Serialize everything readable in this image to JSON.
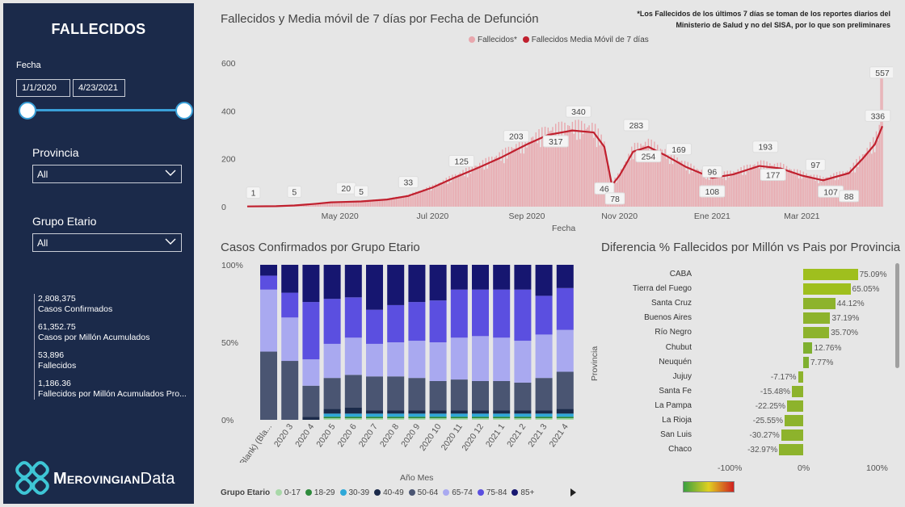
{
  "sidebar": {
    "title": "FALLECIDOS",
    "fecha_label": "Fecha",
    "date_from": "1/1/2020",
    "date_to": "4/23/2021",
    "provincia_label": "Provincia",
    "provincia_value": "All",
    "grupo_label": "Grupo Etario",
    "grupo_value": "All",
    "kpis": [
      {
        "value": "2,808,375",
        "label": "Casos Confirmados"
      },
      {
        "value": "61,352.75",
        "label": "Casos por Millón Acumulados"
      },
      {
        "value": "53,896",
        "label": "Fallecidos"
      },
      {
        "value": "1,186.36",
        "label": "Fallecidos por Millón Acumulados Pro..."
      }
    ],
    "logo_bold": "Merovingian",
    "logo_light": "Data"
  },
  "note": "*Los Fallecidos de los últimos 7 días se toman de los reportes diarios del Ministerio de Salud y no del SISA, por lo que son preliminares",
  "colors": {
    "sidebar": "#1b2a4a",
    "daily_bar": "#e8a7ad",
    "moving_avg": "#c0202e",
    "province_bar": "#8db32c"
  },
  "chart_data": [
    {
      "type": "line",
      "title": "Fallecidos y Media móvil de 7 días por Fecha de Defunción",
      "xlabel": "Fecha",
      "ylim": [
        0,
        600
      ],
      "yticks": [
        "0",
        "200",
        "400",
        "600"
      ],
      "xticks": [
        "May 2020",
        "Jul 2020",
        "Sep 2020",
        "Nov 2020",
        "Ene 2021",
        "Mar 2021"
      ],
      "series": [
        {
          "name": "Fallecidos*",
          "kind": "bar"
        },
        {
          "name": "Fallecidos Media Móvil de 7 días",
          "kind": "line"
        }
      ],
      "moving_avg_points": [
        [
          "2020-03-01",
          1
        ],
        [
          "2020-03-20",
          2
        ],
        [
          "2020-04-01",
          5
        ],
        [
          "2020-04-15",
          12
        ],
        [
          "2020-04-25",
          18
        ],
        [
          "2020-05-05",
          20
        ],
        [
          "2020-05-15",
          22
        ],
        [
          "2020-06-01",
          30
        ],
        [
          "2020-06-15",
          45
        ],
        [
          "2020-07-01",
          80
        ],
        [
          "2020-07-15",
          120
        ],
        [
          "2020-08-01",
          165
        ],
        [
          "2020-08-15",
          205
        ],
        [
          "2020-09-01",
          260
        ],
        [
          "2020-09-15",
          300
        ],
        [
          "2020-10-01",
          318
        ],
        [
          "2020-10-15",
          310
        ],
        [
          "2020-10-22",
          250
        ],
        [
          "2020-10-27",
          90
        ],
        [
          "2020-11-01",
          130
        ],
        [
          "2020-11-10",
          230
        ],
        [
          "2020-11-20",
          250
        ],
        [
          "2020-12-01",
          215
        ],
        [
          "2020-12-15",
          165
        ],
        [
          "2021-01-01",
          120
        ],
        [
          "2021-01-15",
          135
        ],
        [
          "2021-02-01",
          170
        ],
        [
          "2021-02-15",
          160
        ],
        [
          "2021-03-01",
          130
        ],
        [
          "2021-03-15",
          110
        ],
        [
          "2021-04-01",
          140
        ],
        [
          "2021-04-10",
          200
        ],
        [
          "2021-04-18",
          260
        ],
        [
          "2021-04-23",
          336
        ]
      ],
      "data_labels": [
        {
          "date": "2020-03-05",
          "value": "1"
        },
        {
          "date": "2020-04-01",
          "value": "5"
        },
        {
          "date": "2020-05-05",
          "value": "20"
        },
        {
          "date": "2020-05-15",
          "value": "5"
        },
        {
          "date": "2020-06-15",
          "value": "33"
        },
        {
          "date": "2020-07-20",
          "value": "125"
        },
        {
          "date": "2020-08-25",
          "value": "203"
        },
        {
          "date": "2020-09-20",
          "value": "317"
        },
        {
          "date": "2020-10-05",
          "value": "340"
        },
        {
          "date": "2020-10-22",
          "value": "46"
        },
        {
          "date": "2020-10-29",
          "value": "78"
        },
        {
          "date": "2020-11-12",
          "value": "283"
        },
        {
          "date": "2020-11-20",
          "value": "254"
        },
        {
          "date": "2020-12-10",
          "value": "169"
        },
        {
          "date": "2021-01-01",
          "value": "96"
        },
        {
          "date": "2021-01-01",
          "value": "108"
        },
        {
          "date": "2021-02-05",
          "value": "193"
        },
        {
          "date": "2021-02-10",
          "value": "177"
        },
        {
          "date": "2021-03-10",
          "value": "97"
        },
        {
          "date": "2021-03-20",
          "value": "107"
        },
        {
          "date": "2021-04-01",
          "value": "88"
        },
        {
          "date": "2021-04-20",
          "value": "336"
        },
        {
          "date": "2021-04-23",
          "value": "557"
        }
      ]
    },
    {
      "type": "bar",
      "stacked_percent": true,
      "title": "Casos Confirmados por Grupo Etario",
      "xlabel": "Año Mes",
      "legend_title": "Grupo Etario",
      "yticks": [
        "0%",
        "50%",
        "100%"
      ],
      "categories": [
        "(Blank) (Bla...",
        "2020 3",
        "2020 4",
        "2020 5",
        "2020 6",
        "2020 7",
        "2020 8",
        "2020 9",
        "2020 10",
        "2020 11",
        "2020 12",
        "2021 1",
        "2021 2",
        "2021 3",
        "2021 4"
      ],
      "series": [
        {
          "name": "0-17",
          "color": "#a8d8a8",
          "values": [
            0,
            0,
            0,
            1,
            1,
            1,
            1,
            1,
            1,
            1,
            1,
            1,
            1,
            1,
            1
          ]
        },
        {
          "name": "18-29",
          "color": "#2e8b3c",
          "values": [
            0,
            0,
            0,
            1,
            1,
            1,
            1,
            1,
            1,
            1,
            1,
            1,
            1,
            1,
            1
          ]
        },
        {
          "name": "30-39",
          "color": "#2ea8d8",
          "values": [
            0,
            0,
            0,
            2,
            2,
            2,
            2,
            2,
            2,
            2,
            2,
            2,
            2,
            2,
            2
          ]
        },
        {
          "name": "40-49",
          "color": "#1b2a4a",
          "values": [
            0,
            0,
            2,
            3,
            4,
            2,
            2,
            2,
            2,
            2,
            2,
            2,
            2,
            2,
            3
          ]
        },
        {
          "name": "50-64",
          "color": "#4a5572",
          "values": [
            44,
            38,
            20,
            20,
            21,
            22,
            22,
            21,
            19,
            20,
            19,
            19,
            18,
            21,
            24
          ]
        },
        {
          "name": "65-74",
          "color": "#a9a9f0",
          "values": [
            40,
            28,
            17,
            22,
            24,
            21,
            22,
            24,
            25,
            27,
            29,
            28,
            27,
            28,
            27
          ]
        },
        {
          "name": "75-84",
          "color": "#5b4fe0",
          "values": [
            9,
            16,
            37,
            29,
            26,
            22,
            24,
            25,
            27,
            31,
            30,
            31,
            33,
            25,
            27
          ]
        },
        {
          "name": "85+",
          "color": "#161670",
          "values": [
            7,
            18,
            24,
            22,
            21,
            29,
            26,
            24,
            23,
            16,
            16,
            16,
            16,
            20,
            15
          ]
        }
      ]
    },
    {
      "type": "bar",
      "orientation": "horizontal",
      "title": "Diferencia % Fallecidos por Millón vs Pais por Provincia",
      "ylabel": "Provincia",
      "xlim": [
        -100,
        100
      ],
      "xticks": [
        "-100%",
        "0%",
        "100%"
      ],
      "categories": [
        "CABA",
        "Tierra del Fuego",
        "Santa Cruz",
        "Buenos Aires",
        "Río Negro",
        "Chubut",
        "Neuquén",
        "Jujuy",
        "Santa Fe",
        "La Pampa",
        "La Rioja",
        "San Luis",
        "Chaco"
      ],
      "values": [
        75.09,
        65.05,
        44.12,
        37.19,
        35.7,
        12.76,
        7.77,
        -7.17,
        -15.48,
        -22.25,
        -25.55,
        -30.27,
        -32.97
      ],
      "labels": [
        "75.09%",
        "65.05%",
        "44.12%",
        "37.19%",
        "35.70%",
        "12.76%",
        "7.77%",
        "-7.17%",
        "-15.48%",
        "-22.25%",
        "-25.55%",
        "-30.27%",
        "-32.97%"
      ]
    }
  ]
}
